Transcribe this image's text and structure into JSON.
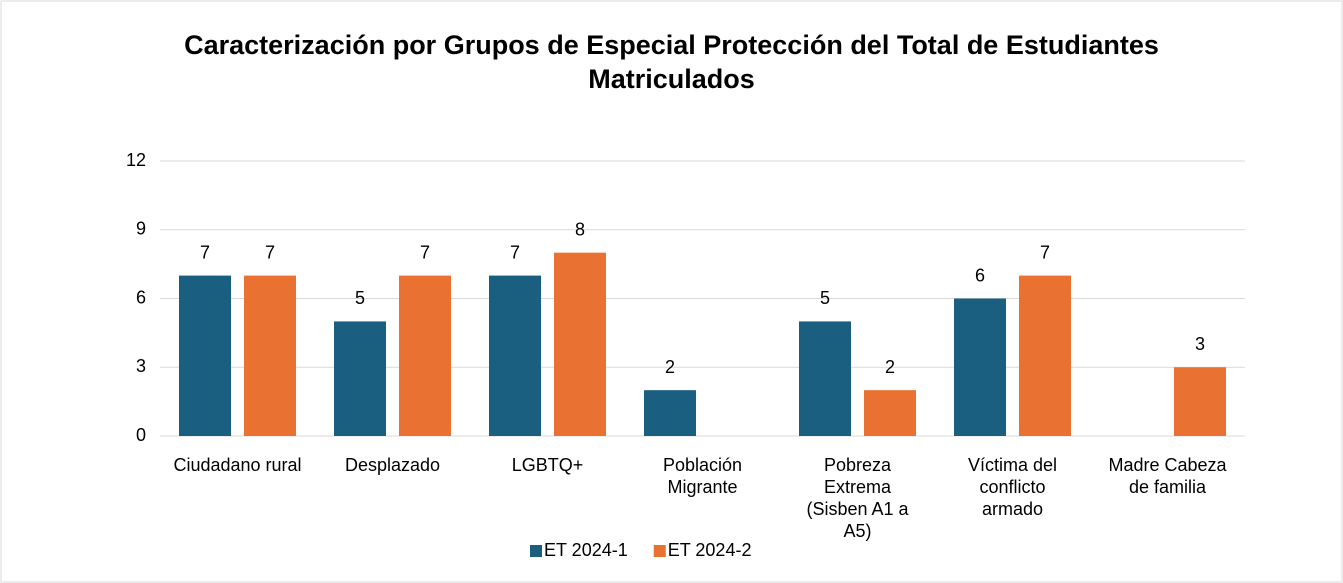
{
  "chart_data": {
    "type": "bar",
    "title": "Caracterización por Grupos de Especial Protección del Total de Estudiantes Matriculados",
    "categories": [
      "Ciudadano rural",
      "Desplazado",
      "LGBTQ+",
      "Población Migrante",
      "Pobreza Extrema (Sisben A1 a A5)",
      "Víctima del conflicto armado",
      "Madre Cabeza de familia"
    ],
    "series": [
      {
        "name": "ET 2024-1",
        "color": "#1a5f80",
        "values": [
          7,
          5,
          7,
          2,
          5,
          6,
          null
        ]
      },
      {
        "name": "ET 2024-2",
        "color": "#e97132",
        "values": [
          7,
          7,
          8,
          null,
          2,
          7,
          3
        ]
      }
    ],
    "ylim": [
      0,
      12
    ],
    "yticks": [
      0,
      3,
      6,
      9,
      12
    ],
    "grid": true,
    "legend": "bottom"
  }
}
